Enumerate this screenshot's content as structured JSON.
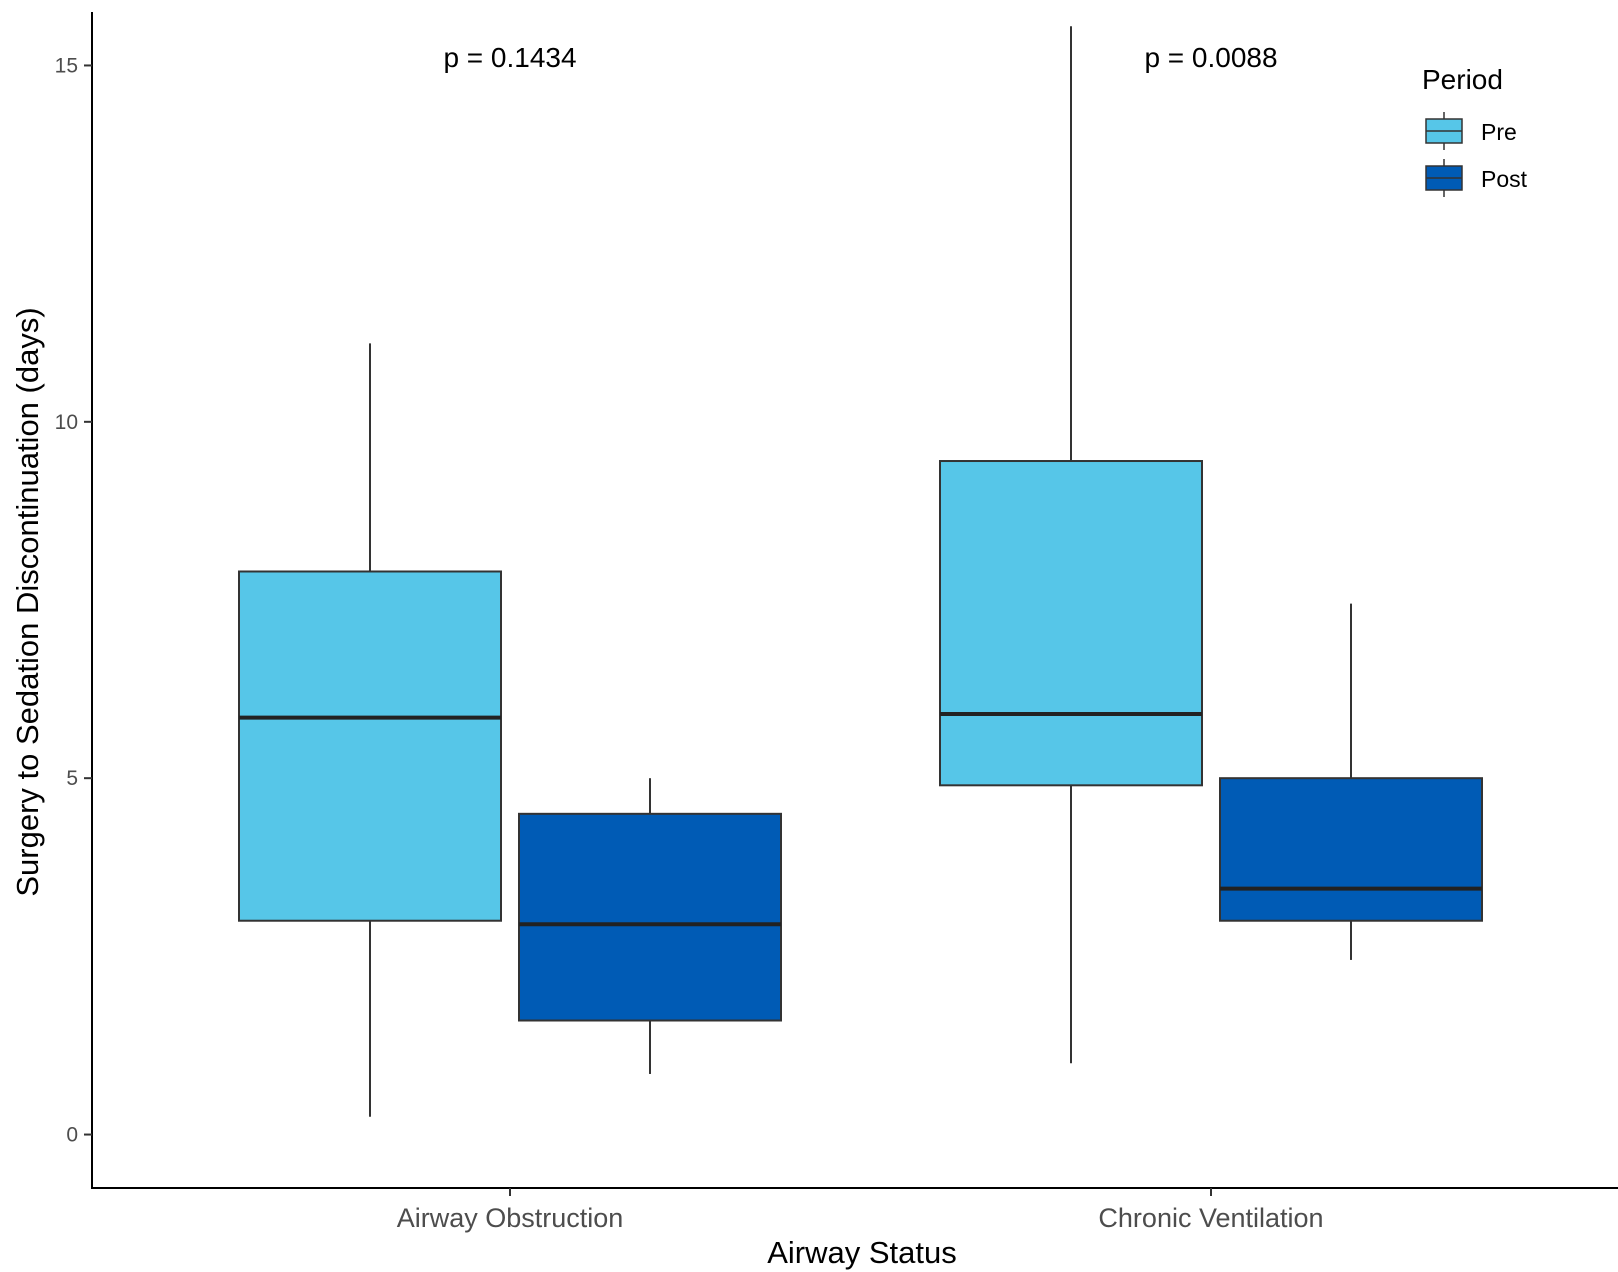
{
  "chart_data": {
    "type": "box",
    "xlabel": "Airway Status",
    "ylabel": "Surgery to Sedation Discontinuation (days)",
    "ylim": [
      -0.75,
      15.75
    ],
    "yticks": [
      0,
      5,
      10,
      15
    ],
    "categories": [
      "Airway Obstruction",
      "Chronic Ventilation"
    ],
    "legend": {
      "title": "Period",
      "position": "top-right"
    },
    "grid": false,
    "series": [
      {
        "name": "Pre",
        "color": "#56c6e8",
        "boxes": [
          {
            "whisker_low": 0.25,
            "q1": 3.0,
            "median": 5.85,
            "q3": 7.9,
            "whisker_high": 11.1
          },
          {
            "whisker_low": 1.0,
            "q1": 4.9,
            "median": 5.9,
            "q3": 9.45,
            "whisker_high": 15.55
          }
        ]
      },
      {
        "name": "Post",
        "color": "#005bb5",
        "boxes": [
          {
            "whisker_low": 0.85,
            "q1": 1.6,
            "median": 2.95,
            "q3": 4.5,
            "whisker_high": 5.0
          },
          {
            "whisker_low": 2.45,
            "q1": 3.0,
            "median": 3.45,
            "q3": 5.0,
            "whisker_high": 7.45
          }
        ]
      }
    ],
    "annotations": [
      {
        "category": "Airway Obstruction",
        "text": "p = 0.1434"
      },
      {
        "category": "Chronic Ventilation",
        "text": "p = 0.0088"
      }
    ]
  }
}
